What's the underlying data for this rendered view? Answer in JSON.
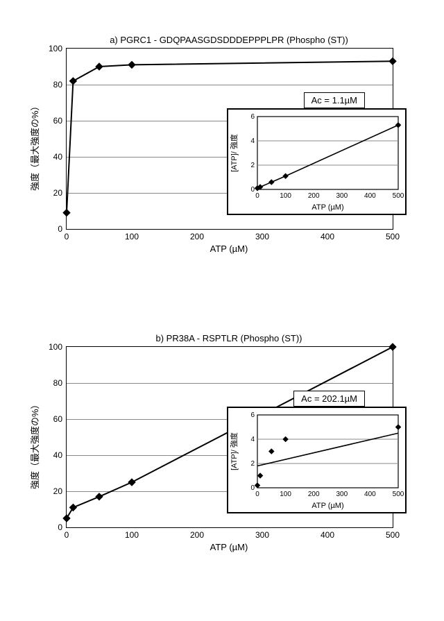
{
  "chart_a": {
    "title": "a) PGRC1 - GDQPAASGDSDDDEPPPLPR (Phospho (ST))",
    "type": "line+scatter",
    "xlabel": "ATP (µM)",
    "ylabel": "強度（最大強度の%）",
    "xlim": [
      0,
      500
    ],
    "ylim": [
      0,
      100
    ],
    "xticks": [
      0,
      100,
      200,
      300,
      400,
      500
    ],
    "yticks": [
      0,
      20,
      40,
      60,
      80,
      100
    ],
    "grid_color": "#888888",
    "border_color": "#000000",
    "line_color": "#000000",
    "marker": "diamond",
    "marker_size": 7,
    "line_width": 2,
    "points": [
      {
        "x": 0,
        "y": 9
      },
      {
        "x": 10,
        "y": 82
      },
      {
        "x": 50,
        "y": 90
      },
      {
        "x": 100,
        "y": 91
      },
      {
        "x": 500,
        "y": 93
      }
    ],
    "ac_label": "Ac = 1.1µM",
    "inset": {
      "type": "line+scatter",
      "xlabel": "ATP (µM)",
      "ylabel": "[ATP]/ 強度",
      "xlim": [
        0,
        500
      ],
      "ylim": [
        0,
        6
      ],
      "xticks": [
        0,
        100,
        200,
        300,
        400,
        500
      ],
      "yticks": [
        0,
        2,
        4,
        6
      ],
      "line_color": "#000000",
      "marker": "diamond",
      "marker_size": 5,
      "points": [
        {
          "x": 0,
          "y": 0.1
        },
        {
          "x": 10,
          "y": 0.2
        },
        {
          "x": 50,
          "y": 0.6
        },
        {
          "x": 100,
          "y": 1.1
        },
        {
          "x": 500,
          "y": 5.3
        }
      ]
    }
  },
  "chart_b": {
    "title": "b) PR38A - RSPTLR (Phospho (ST))",
    "type": "line+scatter",
    "xlabel": "ATP (µM)",
    "ylabel": "強度（最大強度の%）",
    "xlim": [
      0,
      500
    ],
    "ylim": [
      0,
      100
    ],
    "xticks": [
      0,
      100,
      200,
      300,
      400,
      500
    ],
    "yticks": [
      0,
      20,
      40,
      60,
      80,
      100
    ],
    "grid_color": "#888888",
    "border_color": "#000000",
    "line_color": "#000000",
    "marker": "diamond",
    "marker_size": 7,
    "line_width": 2,
    "points": [
      {
        "x": 0,
        "y": 5
      },
      {
        "x": 10,
        "y": 11
      },
      {
        "x": 50,
        "y": 17
      },
      {
        "x": 100,
        "y": 25
      },
      {
        "x": 500,
        "y": 100
      }
    ],
    "ac_label": "Ac = 202.1µM",
    "inset": {
      "type": "line+scatter",
      "xlabel": "ATP (µM)",
      "ylabel": "[ATP]/ 強度",
      "xlim": [
        0,
        500
      ],
      "ylim": [
        0,
        6
      ],
      "xticks": [
        0,
        100,
        200,
        300,
        400,
        500
      ],
      "yticks": [
        0,
        2,
        4,
        6
      ],
      "line_color": "#000000",
      "marker": "diamond",
      "marker_size": 5,
      "points": [
        {
          "x": 0,
          "y": 0.2
        },
        {
          "x": 10,
          "y": 1.0
        },
        {
          "x": 50,
          "y": 3.0
        },
        {
          "x": 100,
          "y": 4.0
        },
        {
          "x": 500,
          "y": 5.0
        }
      ],
      "fit_line": [
        {
          "x": 0,
          "y": 1.8
        },
        {
          "x": 500,
          "y": 4.5
        }
      ]
    }
  }
}
